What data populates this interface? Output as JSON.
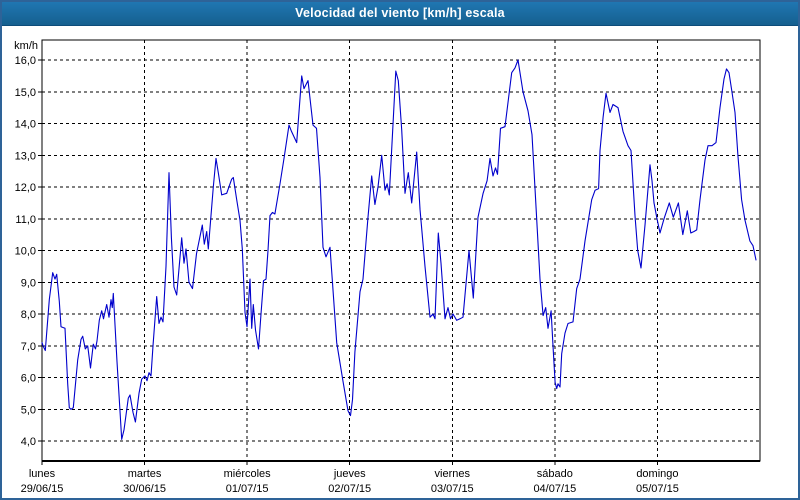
{
  "window": {
    "title": "Velocidad del viento [km/h] escala"
  },
  "colors": {
    "titlebar": "#1b6da8",
    "frame": "#2e6398",
    "line": "#0000cc",
    "grid": "#000000",
    "background": "#ffffff"
  },
  "chart_data": {
    "type": "line",
    "title": "Velocidad del viento [km/h] escala",
    "ylabel": "km/h",
    "xlabel": "",
    "ylim": [
      4,
      16
    ],
    "days_shown": 7,
    "grid": true,
    "legend": "none",
    "y_ticks": [
      {
        "v": 16,
        "label": "16,0"
      },
      {
        "v": 15,
        "label": "15,0"
      },
      {
        "v": 14,
        "label": "14,0"
      },
      {
        "v": 13,
        "label": "13,0"
      },
      {
        "v": 12,
        "label": "12,0"
      },
      {
        "v": 11,
        "label": "11,0"
      },
      {
        "v": 10,
        "label": "10,0"
      },
      {
        "v": 9,
        "label": "9,0"
      },
      {
        "v": 8,
        "label": "8,0"
      },
      {
        "v": 7,
        "label": "7,0"
      },
      {
        "v": 6,
        "label": "6,0"
      },
      {
        "v": 5,
        "label": "5,0"
      },
      {
        "v": 4,
        "label": "4,0"
      }
    ],
    "x_days": [
      {
        "name": "lunes",
        "date": "29/06/15"
      },
      {
        "name": "martes",
        "date": "30/06/15"
      },
      {
        "name": "miércoles",
        "date": "01/07/15"
      },
      {
        "name": "jueves",
        "date": "02/07/15"
      },
      {
        "name": "viernes",
        "date": "03/07/15"
      },
      {
        "name": "sábado",
        "date": "04/07/15"
      },
      {
        "name": "domingo",
        "date": "05/07/15"
      }
    ],
    "series": [
      {
        "name": "Velocidad del viento",
        "color": "#0000cc",
        "points": [
          [
            0.0,
            7.1
          ],
          [
            0.01,
            7.0
          ],
          [
            0.032,
            6.85
          ],
          [
            0.071,
            8.45
          ],
          [
            0.104,
            9.3
          ],
          [
            0.127,
            9.1
          ],
          [
            0.143,
            9.25
          ],
          [
            0.169,
            8.4
          ],
          [
            0.185,
            7.6
          ],
          [
            0.224,
            7.55
          ],
          [
            0.251,
            5.8
          ],
          [
            0.266,
            5.05
          ],
          [
            0.283,
            5.0
          ],
          [
            0.305,
            5.05
          ],
          [
            0.348,
            6.55
          ],
          [
            0.38,
            7.2
          ],
          [
            0.397,
            7.3
          ],
          [
            0.422,
            6.9
          ],
          [
            0.446,
            7.0
          ],
          [
            0.473,
            6.3
          ],
          [
            0.5,
            7.05
          ],
          [
            0.522,
            6.9
          ],
          [
            0.536,
            7.15
          ],
          [
            0.559,
            7.8
          ],
          [
            0.582,
            8.1
          ],
          [
            0.6,
            7.85
          ],
          [
            0.631,
            8.3
          ],
          [
            0.653,
            7.9
          ],
          [
            0.673,
            8.45
          ],
          [
            0.685,
            8.2
          ],
          [
            0.695,
            8.65
          ],
          [
            0.731,
            6.5
          ],
          [
            0.777,
            4.05
          ],
          [
            0.799,
            4.35
          ],
          [
            0.841,
            5.35
          ],
          [
            0.858,
            5.45
          ],
          [
            0.887,
            4.9
          ],
          [
            0.911,
            4.6
          ],
          [
            0.946,
            5.5
          ],
          [
            0.972,
            5.95
          ],
          [
            1.004,
            6.05
          ],
          [
            1.024,
            5.9
          ],
          [
            1.043,
            6.15
          ],
          [
            1.063,
            6.05
          ],
          [
            1.082,
            7.0
          ],
          [
            1.118,
            8.55
          ],
          [
            1.141,
            7.7
          ],
          [
            1.16,
            7.9
          ],
          [
            1.18,
            7.75
          ],
          [
            1.209,
            9.5
          ],
          [
            1.238,
            12.45
          ],
          [
            1.262,
            10.4
          ],
          [
            1.287,
            8.85
          ],
          [
            1.313,
            8.6
          ],
          [
            1.362,
            10.4
          ],
          [
            1.384,
            9.6
          ],
          [
            1.404,
            10.05
          ],
          [
            1.433,
            9.0
          ],
          [
            1.467,
            8.8
          ],
          [
            1.506,
            9.9
          ],
          [
            1.563,
            10.8
          ],
          [
            1.582,
            10.2
          ],
          [
            1.606,
            10.6
          ],
          [
            1.621,
            10.05
          ],
          [
            1.67,
            12.0
          ],
          [
            1.696,
            12.9
          ],
          [
            1.719,
            12.45
          ],
          [
            1.752,
            11.75
          ],
          [
            1.801,
            11.8
          ],
          [
            1.849,
            12.25
          ],
          [
            1.865,
            12.3
          ],
          [
            1.898,
            11.6
          ],
          [
            1.93,
            10.95
          ],
          [
            1.953,
            10.05
          ],
          [
            1.979,
            8.05
          ],
          [
            1.999,
            7.6
          ],
          [
            2.028,
            9.1
          ],
          [
            2.044,
            7.55
          ],
          [
            2.06,
            8.3
          ],
          [
            2.081,
            7.5
          ],
          [
            2.111,
            6.9
          ],
          [
            2.135,
            8.0
          ],
          [
            2.159,
            9.05
          ],
          [
            2.184,
            9.1
          ],
          [
            2.203,
            10.0
          ],
          [
            2.223,
            11.1
          ],
          [
            2.247,
            11.2
          ],
          [
            2.271,
            11.15
          ],
          [
            2.32,
            12.1
          ],
          [
            2.359,
            12.9
          ],
          [
            2.408,
            13.95
          ],
          [
            2.432,
            13.75
          ],
          [
            2.483,
            13.4
          ],
          [
            2.532,
            15.5
          ],
          [
            2.554,
            15.1
          ],
          [
            2.593,
            15.35
          ],
          [
            2.642,
            13.95
          ],
          [
            2.676,
            13.85
          ],
          [
            2.71,
            12.3
          ],
          [
            2.74,
            10.1
          ],
          [
            2.769,
            9.8
          ],
          [
            2.808,
            10.1
          ],
          [
            2.873,
            7.1
          ],
          [
            2.934,
            5.9
          ],
          [
            2.983,
            4.95
          ],
          [
            3.008,
            4.8
          ],
          [
            3.027,
            5.3
          ],
          [
            3.051,
            6.8
          ],
          [
            3.1,
            8.7
          ],
          [
            3.13,
            9.1
          ],
          [
            3.178,
            11.05
          ],
          [
            3.214,
            12.35
          ],
          [
            3.246,
            11.45
          ],
          [
            3.276,
            12.0
          ],
          [
            3.312,
            13.0
          ],
          [
            3.344,
            11.9
          ],
          [
            3.364,
            12.1
          ],
          [
            3.386,
            11.75
          ],
          [
            3.449,
            15.65
          ],
          [
            3.474,
            15.35
          ],
          [
            3.507,
            13.8
          ],
          [
            3.539,
            11.8
          ],
          [
            3.571,
            12.45
          ],
          [
            3.604,
            11.5
          ],
          [
            3.653,
            13.1
          ],
          [
            3.685,
            11.3
          ],
          [
            3.734,
            9.5
          ],
          [
            3.783,
            7.9
          ],
          [
            3.812,
            8.0
          ],
          [
            3.831,
            7.85
          ],
          [
            3.864,
            10.55
          ],
          [
            3.89,
            9.6
          ],
          [
            3.929,
            7.85
          ],
          [
            3.958,
            8.2
          ],
          [
            3.983,
            7.85
          ],
          [
            4.007,
            8.0
          ],
          [
            4.043,
            7.8
          ],
          [
            4.075,
            7.85
          ],
          [
            4.104,
            7.9
          ],
          [
            4.163,
            10.0
          ],
          [
            4.205,
            8.5
          ],
          [
            4.251,
            11.05
          ],
          [
            4.3,
            11.8
          ],
          [
            4.339,
            12.2
          ],
          [
            4.368,
            12.9
          ],
          [
            4.397,
            12.35
          ],
          [
            4.421,
            12.6
          ],
          [
            4.441,
            12.4
          ],
          [
            4.47,
            13.85
          ],
          [
            4.514,
            13.9
          ],
          [
            4.579,
            15.6
          ],
          [
            4.611,
            15.75
          ],
          [
            4.641,
            16.0
          ],
          [
            4.689,
            15.0
          ],
          [
            4.738,
            14.4
          ],
          [
            4.777,
            13.65
          ],
          [
            4.807,
            11.9
          ],
          [
            4.855,
            9.1
          ],
          [
            4.885,
            7.95
          ],
          [
            4.911,
            8.2
          ],
          [
            4.933,
            7.55
          ],
          [
            4.963,
            8.1
          ],
          [
            4.982,
            7.0
          ],
          [
            5.002,
            5.85
          ],
          [
            5.018,
            5.65
          ],
          [
            5.031,
            5.8
          ],
          [
            5.05,
            5.7
          ],
          [
            5.067,
            6.75
          ],
          [
            5.099,
            7.4
          ],
          [
            5.128,
            7.7
          ],
          [
            5.177,
            7.75
          ],
          [
            5.213,
            8.8
          ],
          [
            5.245,
            9.1
          ],
          [
            5.294,
            10.3
          ],
          [
            5.359,
            11.6
          ],
          [
            5.392,
            11.9
          ],
          [
            5.426,
            11.95
          ],
          [
            5.44,
            13.15
          ],
          [
            5.47,
            14.2
          ],
          [
            5.499,
            14.95
          ],
          [
            5.538,
            14.35
          ],
          [
            5.567,
            14.6
          ],
          [
            5.616,
            14.5
          ],
          [
            5.664,
            13.75
          ],
          [
            5.713,
            13.3
          ],
          [
            5.742,
            13.15
          ],
          [
            5.781,
            11.1
          ],
          [
            5.808,
            10.0
          ],
          [
            5.84,
            9.45
          ],
          [
            5.879,
            10.8
          ],
          [
            5.928,
            12.7
          ],
          [
            5.947,
            12.2
          ],
          [
            5.967,
            11.5
          ],
          [
            5.993,
            11.05
          ],
          [
            6.025,
            10.55
          ],
          [
            6.064,
            11.0
          ],
          [
            6.116,
            11.5
          ],
          [
            6.155,
            11.05
          ],
          [
            6.204,
            11.5
          ],
          [
            6.247,
            10.5
          ],
          [
            6.291,
            11.25
          ],
          [
            6.325,
            10.55
          ],
          [
            6.357,
            10.6
          ],
          [
            6.383,
            10.65
          ],
          [
            6.415,
            11.6
          ],
          [
            6.464,
            12.85
          ],
          [
            6.493,
            13.3
          ],
          [
            6.532,
            13.3
          ],
          [
            6.571,
            13.4
          ],
          [
            6.61,
            14.5
          ],
          [
            6.649,
            15.4
          ],
          [
            6.673,
            15.72
          ],
          [
            6.698,
            15.6
          ],
          [
            6.724,
            15.05
          ],
          [
            6.756,
            14.35
          ],
          [
            6.785,
            13.0
          ],
          [
            6.821,
            11.6
          ],
          [
            6.854,
            10.95
          ],
          [
            6.902,
            10.3
          ],
          [
            6.932,
            10.15
          ],
          [
            6.961,
            9.7
          ]
        ]
      }
    ]
  }
}
